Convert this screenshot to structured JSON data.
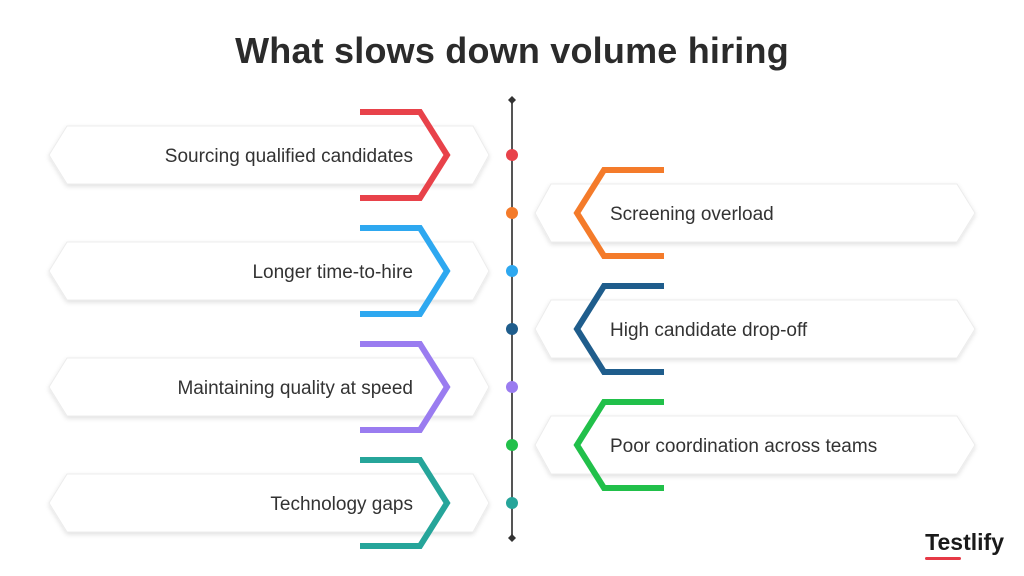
{
  "title": "What slows down volume hiring",
  "brand": "Testlify",
  "colors": {
    "red": "#e8424a",
    "orange": "#f47b2a",
    "blue": "#2ea8f0",
    "navy": "#1f5d8c",
    "purple": "#9a7cf0",
    "green": "#21c04a",
    "teal": "#26a59a",
    "axis": "#555555"
  },
  "items": [
    {
      "label": "Sourcing qualified candidates",
      "side": "left",
      "color": "#e8424a"
    },
    {
      "label": "Screening overload",
      "side": "right",
      "color": "#f47b2a"
    },
    {
      "label": "Longer time-to-hire",
      "side": "left",
      "color": "#2ea8f0"
    },
    {
      "label": "High candidate drop-off",
      "side": "right",
      "color": "#1f5d8c"
    },
    {
      "label": "Maintaining quality at speed",
      "side": "left",
      "color": "#9a7cf0"
    },
    {
      "label": "Poor coordination across teams",
      "side": "right",
      "color": "#21c04a"
    },
    {
      "label": "Technology gaps",
      "side": "left",
      "color": "#26a59a"
    }
  ]
}
